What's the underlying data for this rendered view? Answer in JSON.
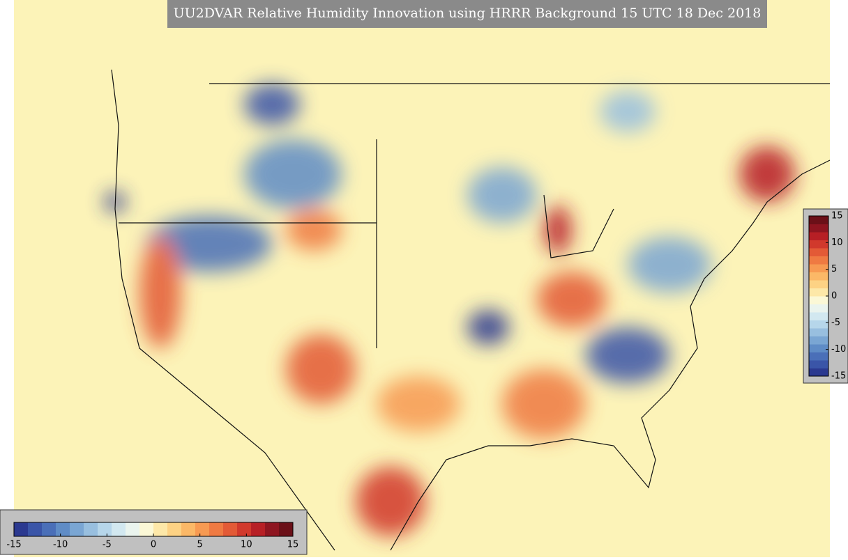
{
  "title": "UU2DVAR Relative Humidity Innovation using HRRR Background 15 UTC 18 Dec 2018",
  "colorbar_horizontal": {
    "lim": [
      -15,
      15
    ],
    "ticks": [
      -15,
      -10,
      -5,
      0,
      5,
      10,
      15
    ]
  },
  "colorbar_vertical": {
    "lim": [
      -15,
      15
    ],
    "ticks": [
      -15,
      -10,
      -5,
      0,
      5,
      10,
      15
    ]
  },
  "colors": [
    "#2b3990",
    "#3a55a8",
    "#4a6fb8",
    "#5f8cc6",
    "#7aa6d3",
    "#98bfdf",
    "#b6d6ea",
    "#d2e8f0",
    "#eaf4ee",
    "#fbf8d6",
    "#fde8a8",
    "#fdd284",
    "#fbb867",
    "#f79a52",
    "#ef7a42",
    "#e35a36",
    "#d1392c",
    "#b71f25",
    "#8e1520",
    "#6b1018"
  ]
}
